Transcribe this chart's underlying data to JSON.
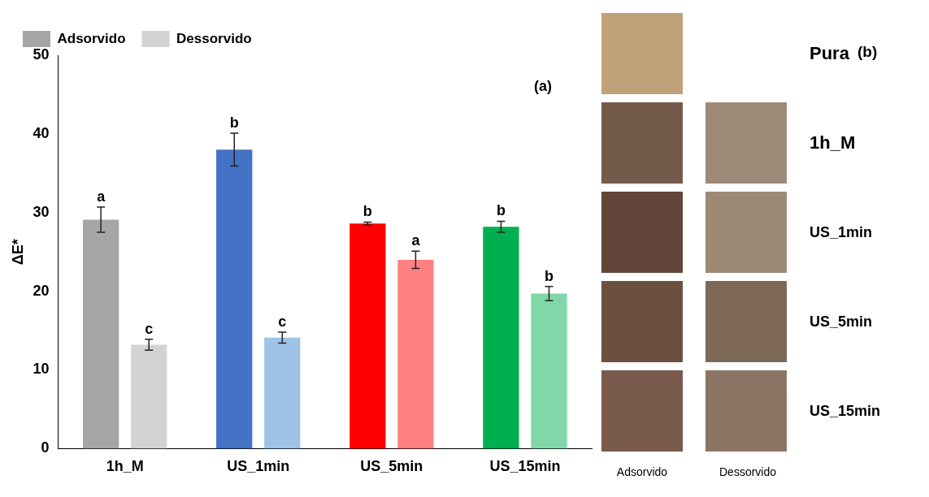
{
  "chart_data": [
    {
      "type": "bar",
      "ylabel": "ΔE*",
      "categories": [
        "1h_M",
        "US_1min",
        "US_5min",
        "US_15min"
      ],
      "ylim": [
        0,
        50
      ],
      "yticks": [
        0,
        10,
        20,
        30,
        40,
        50
      ],
      "grid": false,
      "legend": "top left",
      "series": [
        {
          "name": "Adsorvido",
          "color": "#a6a6a6",
          "colors": [
            "#a6a6a6",
            "#4472c4",
            "#ff0000",
            "#00b050"
          ],
          "values": [
            29.1,
            38,
            28.6,
            28.2
          ],
          "errors": [
            1.6,
            2.1,
            0.2,
            0.7
          ]
        },
        {
          "name": "Dessorvido",
          "color": "#d3d3d3",
          "colors": [
            "#d3d3d3",
            "#9dc3e6",
            "#ff8080",
            "#80d8a8"
          ],
          "values": [
            13.2,
            14.1,
            24,
            19.7
          ],
          "errors": [
            0.7,
            0.7,
            1.1,
            0.9
          ]
        }
      ],
      "annotations": [
        "(a)",
        "a",
        "c",
        "b",
        "c",
        "b",
        "a",
        "b",
        "b"
      ]
    },
    {
      "type": "other",
      "title": "(b)",
      "annotations": [
        "Pura",
        "1h_M",
        "US_1min",
        "US_5min",
        "US_15min",
        "Adsorvido",
        "Dessorvido"
      ]
    }
  ]
}
